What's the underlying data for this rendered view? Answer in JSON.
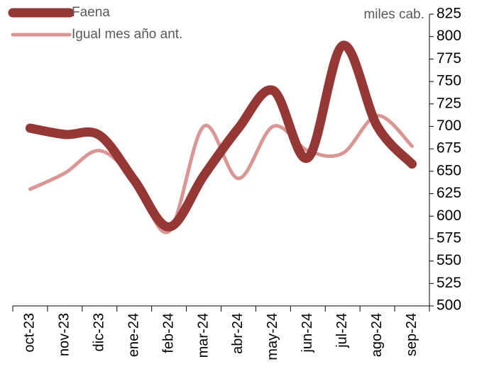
{
  "chart_data": {
    "type": "line",
    "unit_label": "miles cab.",
    "categories": [
      "oct-23",
      "nov-23",
      "dic-23",
      "ene-24",
      "feb-24",
      "mar-24",
      "abr-24",
      "may-24",
      "jun-24",
      "jul-24",
      "ago-24",
      "sep-24"
    ],
    "series": [
      {
        "name": "Faena",
        "color": "#953735",
        "values": [
          698,
          691,
          690,
          640,
          588,
          645,
          698,
          740,
          665,
          790,
          700,
          658
        ]
      },
      {
        "name": "Igual mes año ant.",
        "color": "#d99694",
        "values": [
          630,
          648,
          673,
          640,
          583,
          700,
          642,
          700,
          673,
          670,
          712,
          678
        ]
      }
    ],
    "ylim": [
      500,
      825
    ],
    "yticks": [
      500,
      525,
      550,
      575,
      600,
      625,
      650,
      675,
      700,
      725,
      750,
      775,
      800,
      825
    ],
    "y_axis_side": "right",
    "legend": "top-left"
  }
}
